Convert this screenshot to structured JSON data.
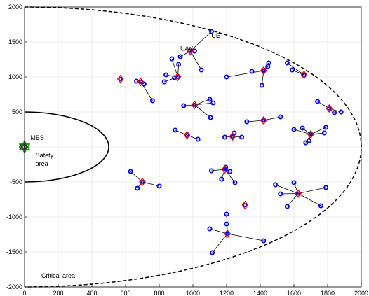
{
  "chart_data": {
    "type": "scatter",
    "xlim": [
      0,
      2000
    ],
    "ylim": [
      -2000,
      2000
    ],
    "grid": true,
    "xticks": [
      0,
      200,
      400,
      600,
      800,
      1000,
      1200,
      1400,
      1600,
      1800,
      2000
    ],
    "yticks": [
      -2000,
      -1500,
      -1000,
      -500,
      0,
      500,
      1000,
      1500,
      2000
    ],
    "colors": {
      "ue": "#0000ff",
      "uav": "#ff0000",
      "mbs_star": "#008000",
      "mbs_marker": "#333333",
      "link": "#000000",
      "grid": "#e6e6e6"
    },
    "annotations": [
      {
        "text": "UE",
        "x": 1110,
        "y": 1560
      },
      {
        "text": "UAV",
        "x": 925,
        "y": 1375
      },
      {
        "text": "MBS",
        "x": 35,
        "y": 100
      },
      {
        "text": "Safety",
        "x": 65,
        "y": -150
      },
      {
        "text": "area",
        "x": 65,
        "y": -270
      },
      {
        "text": "Critical area",
        "x": 100,
        "y": -1870
      }
    ],
    "mbs": {
      "x": 0,
      "y": 0
    },
    "safety_area": {
      "center": [
        0,
        0
      ],
      "rx": 500,
      "ry": 500
    },
    "critical_area": {
      "center": [
        0,
        0
      ],
      "rx": 2000,
      "ry": 2000
    },
    "uav_clusters": [
      {
        "uav": [
          570,
          970
        ],
        "ues": []
      },
      {
        "uav": [
          690,
          930
        ],
        "ues": [
          [
            665,
            940
          ],
          [
            710,
            900
          ],
          [
            760,
            660
          ]
        ]
      },
      {
        "uav": [
          985,
          1370
        ],
        "ues": [
          [
            1110,
            1650
          ],
          [
            1010,
            1370
          ],
          [
            1050,
            1100
          ],
          [
            925,
            1290
          ]
        ]
      },
      {
        "uav": [
          910,
          1000
        ],
        "ues": [
          [
            875,
            1260
          ],
          [
            915,
            1180
          ],
          [
            840,
            1030
          ],
          [
            830,
            930
          ],
          [
            890,
            990
          ]
        ]
      },
      {
        "uav": [
          1010,
          600
        ],
        "ues": [
          [
            945,
            590
          ],
          [
            1100,
            680
          ],
          [
            1120,
            630
          ],
          [
            1105,
            420
          ]
        ]
      },
      {
        "uav": [
          965,
          170
        ],
        "ues": [
          [
            895,
            240
          ],
          [
            1030,
            110
          ]
        ]
      },
      {
        "uav": [
          1235,
          150
        ],
        "ues": [
          [
            1190,
            140
          ],
          [
            1290,
            140
          ],
          [
            1245,
            200
          ]
        ]
      },
      {
        "uav": [
          1420,
          1090
        ],
        "ues": [
          [
            1200,
            1000
          ],
          [
            1350,
            1080
          ],
          [
            1445,
            1150
          ],
          [
            1450,
            1200
          ],
          [
            1410,
            880
          ]
        ]
      },
      {
        "uav": [
          1660,
          1030
        ],
        "ues": [
          [
            1560,
            1200
          ],
          [
            1590,
            1100
          ]
        ]
      },
      {
        "uav": [
          1420,
          380
        ],
        "ues": [
          [
            1320,
            360
          ],
          [
            1520,
            430
          ]
        ]
      },
      {
        "uav": [
          1700,
          180
        ],
        "ues": [
          [
            1600,
            250
          ],
          [
            1650,
            270
          ],
          [
            1690,
            90
          ],
          [
            1670,
            60
          ],
          [
            1790,
            280
          ],
          [
            1780,
            200
          ]
        ]
      },
      {
        "uav": [
          1810,
          550
        ],
        "ues": [
          [
            1740,
            650
          ],
          [
            1840,
            490
          ],
          [
            1880,
            500
          ]
        ]
      },
      {
        "uav": [
          1190,
          -320
        ],
        "ues": [
          [
            1110,
            -340
          ],
          [
            1170,
            -460
          ],
          [
            1195,
            -290
          ],
          [
            1220,
            -350
          ],
          [
            1250,
            -510
          ]
        ]
      },
      {
        "uav": [
          700,
          -500
        ],
        "ues": [
          [
            630,
            -350
          ],
          [
            670,
            -590
          ],
          [
            800,
            -560
          ]
        ]
      },
      {
        "uav": [
          1310,
          -830
        ],
        "ues": []
      },
      {
        "uav": [
          1205,
          -1240
        ],
        "ues": [
          [
            1200,
            -960
          ],
          [
            1200,
            -1100
          ],
          [
            1100,
            -1170
          ],
          [
            1115,
            -1510
          ],
          [
            1420,
            -1340
          ]
        ]
      },
      {
        "uav": [
          1625,
          -665
        ],
        "ues": [
          [
            1490,
            -540
          ],
          [
            1520,
            -670
          ],
          [
            1600,
            -510
          ],
          [
            1560,
            -850
          ],
          [
            1790,
            -580
          ],
          [
            1760,
            -840
          ]
        ]
      }
    ]
  }
}
